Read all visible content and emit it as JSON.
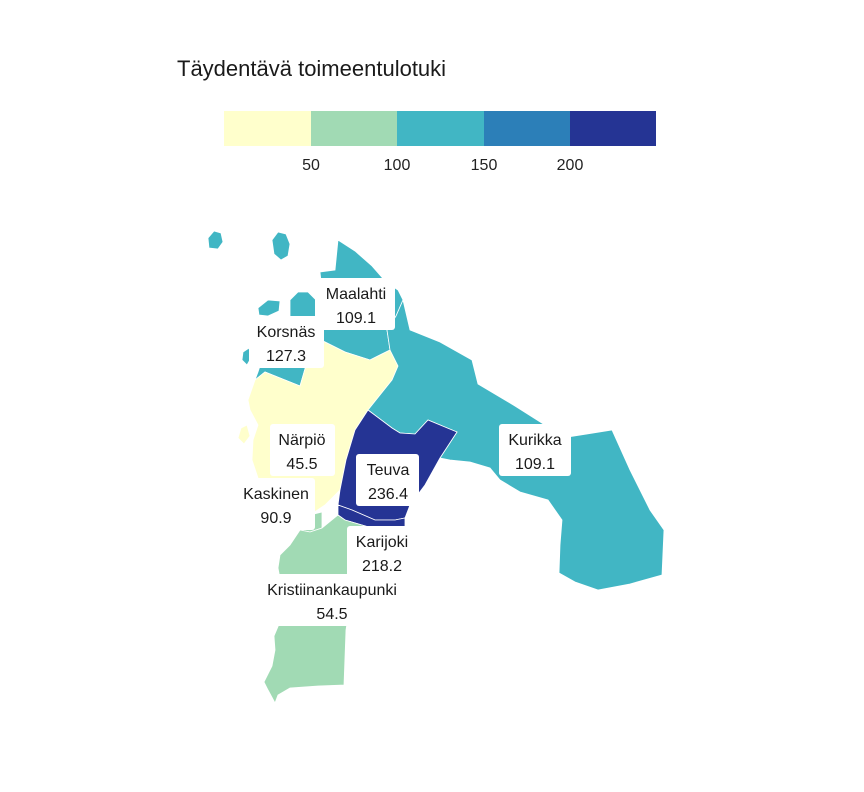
{
  "title": "Täydentävä toimeentulotuki",
  "legend": {
    "colors": [
      "#ffffcc",
      "#a1dab4",
      "#41b6c4",
      "#2c7fb8",
      "#253494"
    ],
    "ticks": [
      "50",
      "100",
      "150",
      "200"
    ]
  },
  "regions": [
    {
      "name": "Maalahti",
      "value": "109.1",
      "color": "#41b6c4"
    },
    {
      "name": "Korsnäs",
      "value": "127.3",
      "color": "#41b6c4"
    },
    {
      "name": "Närpiö",
      "value": "45.5",
      "color": "#ffffcc"
    },
    {
      "name": "Kurikka",
      "value": "109.1",
      "color": "#41b6c4"
    },
    {
      "name": "Teuva",
      "value": "236.4",
      "color": "#253494"
    },
    {
      "name": "Kaskinen",
      "value": "90.9",
      "color": "#a1dab4"
    },
    {
      "name": "Karijoki",
      "value": "218.2",
      "color": "#253494"
    },
    {
      "name": "Kristiinankaupunki",
      "value": "54.5",
      "color": "#a1dab4"
    }
  ]
}
